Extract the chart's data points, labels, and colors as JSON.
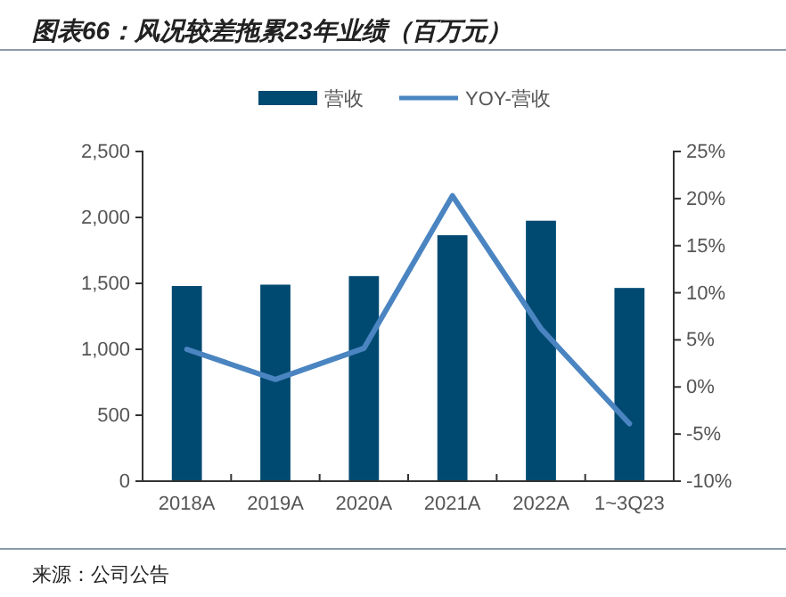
{
  "chart_data": {
    "type": "bar",
    "title": "图表66：风况较差拖累23年业绩（百万元）",
    "categories": [
      "2018A",
      "2019A",
      "2020A",
      "2021A",
      "2022A",
      "1~3Q23"
    ],
    "series": [
      {
        "name": "营收",
        "color": "#004a72",
        "values": [
          1480,
          1490,
          1555,
          1865,
          1975,
          1465
        ]
      },
      {
        "name": "YOY-营收",
        "type": "line",
        "axis": "y2",
        "color": "#4a85c1",
        "values": [
          4.0,
          0.8,
          4.1,
          20.3,
          6.2,
          -3.9
        ]
      }
    ],
    "ylim": [
      0,
      2500
    ],
    "yticks": [
      0,
      {
        "value": 500,
        "label": "500"
      },
      {
        "value": 1000,
        "label": "1,000"
      },
      {
        "value": 1500,
        "label": "1,500"
      },
      {
        "value": 2000,
        "label": "2,000"
      },
      {
        "value": 2500,
        "label": "2,500"
      }
    ],
    "y2lim": [
      -10,
      25
    ],
    "y2ticks": [
      {
        "value": -10,
        "label": "-10%"
      },
      {
        "value": -5,
        "label": "-5%"
      },
      {
        "value": 0,
        "label": "0%"
      },
      {
        "value": 5,
        "label": "5%"
      },
      {
        "value": 10,
        "label": "10%"
      },
      {
        "value": 15,
        "label": "15%"
      },
      {
        "value": 20,
        "label": "20%"
      },
      {
        "value": 25,
        "label": "25%"
      }
    ],
    "grid": false,
    "legend": "top",
    "annotations": [
      "来源：公司公告"
    ]
  }
}
